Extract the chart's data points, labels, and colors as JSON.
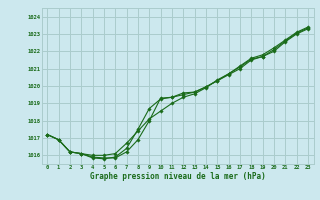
{
  "xlabel": "Graphe pression niveau de la mer (hPa)",
  "ylabel": "",
  "bg_color": "#cce8ee",
  "grid_color": "#aacccc",
  "line_color": "#1a6b1a",
  "marker_color": "#1a6b1a",
  "xlim": [
    -0.5,
    23.5
  ],
  "ylim": [
    1015.5,
    1024.5
  ],
  "yticks": [
    1016,
    1017,
    1018,
    1019,
    1020,
    1021,
    1022,
    1023,
    1024
  ],
  "xticks": [
    0,
    1,
    2,
    3,
    4,
    5,
    6,
    7,
    8,
    9,
    10,
    11,
    12,
    13,
    14,
    15,
    16,
    17,
    18,
    19,
    20,
    21,
    22,
    23
  ],
  "series1": [
    1017.2,
    1016.9,
    1016.2,
    1016.1,
    1015.9,
    1015.85,
    1015.85,
    1016.2,
    1016.9,
    1018.0,
    1019.3,
    1019.35,
    1019.6,
    1019.65,
    1019.95,
    1020.3,
    1020.65,
    1021.0,
    1021.5,
    1021.7,
    1022.0,
    1022.55,
    1023.0,
    1023.3
  ],
  "series2": [
    1017.2,
    1016.9,
    1016.2,
    1016.1,
    1015.85,
    1015.8,
    1015.9,
    1016.4,
    1017.5,
    1018.7,
    1019.25,
    1019.35,
    1019.5,
    1019.65,
    1019.95,
    1020.3,
    1020.7,
    1021.1,
    1021.55,
    1021.7,
    1022.1,
    1022.6,
    1023.05,
    1023.35
  ],
  "series3": [
    1017.2,
    1016.9,
    1016.2,
    1016.1,
    1016.0,
    1016.0,
    1016.1,
    1016.7,
    1017.4,
    1018.1,
    1018.55,
    1019.0,
    1019.35,
    1019.55,
    1019.9,
    1020.35,
    1020.7,
    1021.15,
    1021.6,
    1021.8,
    1022.2,
    1022.65,
    1023.1,
    1023.4
  ]
}
